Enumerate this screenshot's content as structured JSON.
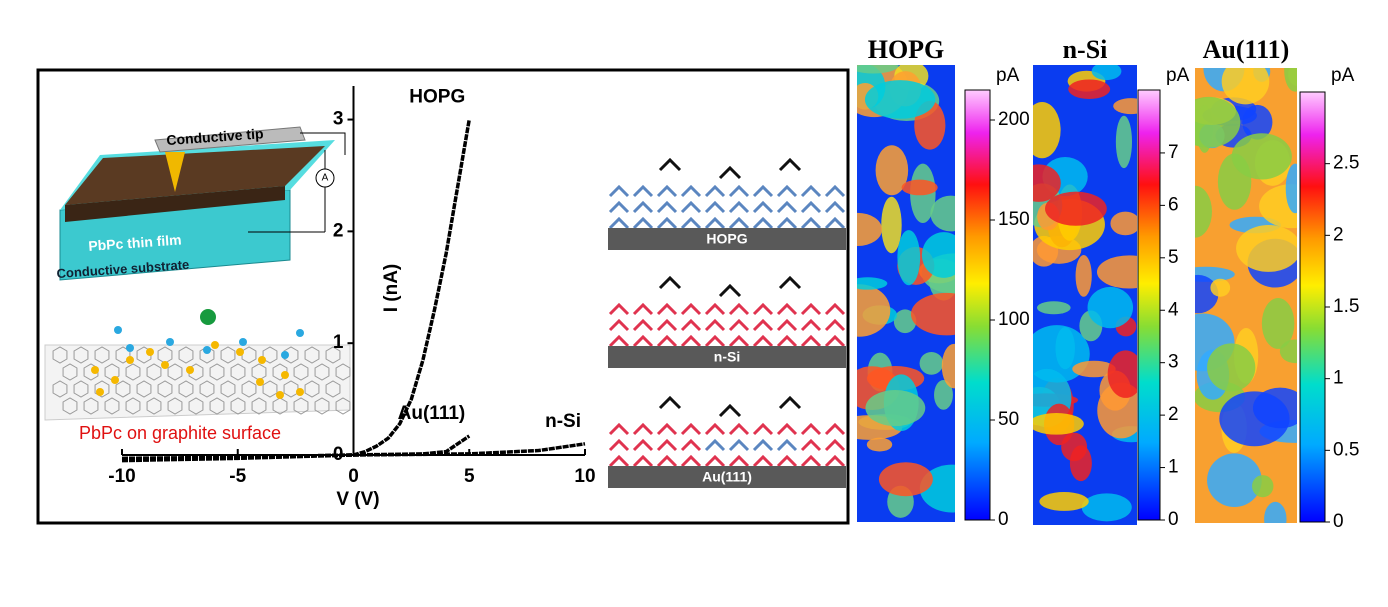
{
  "chart_data": [
    {
      "type": "line",
      "xlabel": "V (V)",
      "ylabel": "I (nA)",
      "xlim": [
        -10,
        10
      ],
      "ylim": [
        0,
        3.3
      ],
      "xticks": [
        -10,
        -5,
        0,
        5,
        10
      ],
      "yticks": [
        0,
        1,
        2,
        3
      ],
      "series": [
        {
          "name": "HOPG",
          "color": "#000000",
          "x": [
            -10,
            -5,
            0,
            0.5,
            1,
            1.5,
            2,
            2.5,
            3,
            3.5,
            4,
            4.5,
            5
          ],
          "values": [
            -0.05,
            -0.03,
            0,
            0.03,
            0.08,
            0.15,
            0.28,
            0.5,
            0.85,
            1.3,
            1.8,
            2.4,
            3.0
          ]
        },
        {
          "name": "Au(111)",
          "color": "#000000",
          "x": [
            -10,
            -5,
            0,
            3,
            4,
            4.5,
            5
          ],
          "values": [
            -0.04,
            -0.02,
            0,
            0.01,
            0.03,
            0.1,
            0.17
          ]
        },
        {
          "name": "n-Si",
          "color": "#000000",
          "x": [
            -10,
            -5,
            0,
            5,
            8,
            10
          ],
          "values": [
            -0.03,
            -0.02,
            0,
            0.01,
            0.04,
            0.1
          ]
        }
      ]
    },
    {
      "type": "colorbar",
      "title": "HOPG",
      "unit": "pA",
      "ylim": [
        0,
        215
      ],
      "yticks": [
        0,
        50,
        100,
        150,
        200
      ]
    },
    {
      "type": "colorbar",
      "title": "n-Si",
      "unit": "pA",
      "ylim": [
        0,
        8.2
      ],
      "yticks": [
        0,
        1,
        2,
        3,
        4,
        5,
        6,
        7
      ]
    },
    {
      "type": "colorbar",
      "title": "Au(111)",
      "unit": "pA",
      "ylim": [
        0,
        3
      ],
      "yticks": [
        0,
        0.5,
        1,
        1.5,
        2,
        2.5
      ]
    }
  ],
  "schematic": {
    "tip": "Conductive tip",
    "ammeter": "A",
    "film": "PbPc  thin film",
    "substrate": "Conductive substrate",
    "caption": "PbPc on graphite surface"
  },
  "models": [
    "HOPG",
    "n-Si",
    "Au(111)"
  ]
}
